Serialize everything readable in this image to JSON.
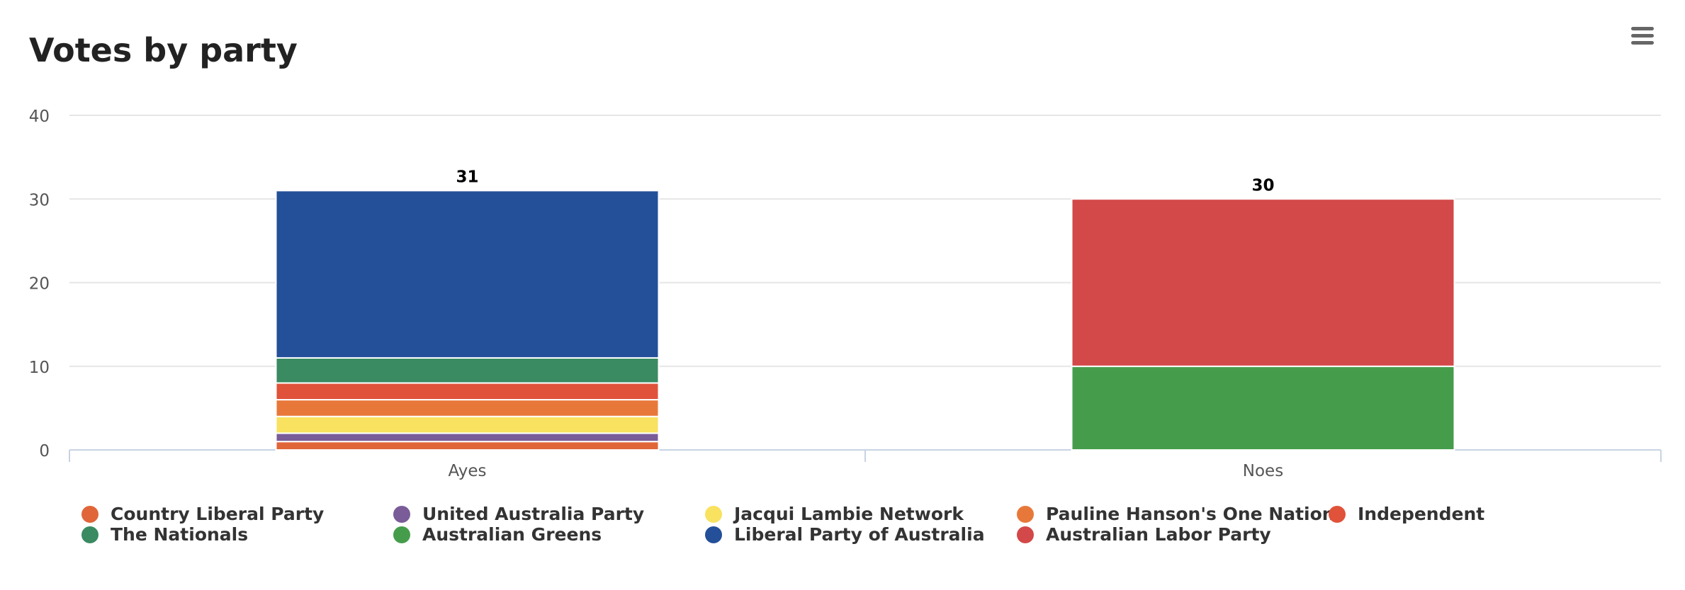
{
  "chart_data": {
    "type": "bar",
    "stacked": true,
    "title": "Votes by party",
    "categories": [
      "Ayes",
      "Noes"
    ],
    "ylim": [
      0,
      40
    ],
    "yticks": [
      0,
      10,
      20,
      30,
      40
    ],
    "grid": true,
    "legend_position": "bottom",
    "stack_totals": [
      31,
      30
    ],
    "series": [
      {
        "name": "Country Liberal Party",
        "color": "#e0663a",
        "values": [
          1,
          0
        ]
      },
      {
        "name": "United Australia Party",
        "color": "#7a5c99",
        "values": [
          1,
          0
        ]
      },
      {
        "name": "Jacqui Lambie Network",
        "color": "#f8e25f",
        "values": [
          2,
          0
        ]
      },
      {
        "name": "Pauline Hanson's One Nation",
        "color": "#e8783a",
        "values": [
          2,
          0
        ]
      },
      {
        "name": "Independent",
        "color": "#e0523a",
        "values": [
          2,
          0
        ]
      },
      {
        "name": "The Nationals",
        "color": "#3a8a62",
        "values": [
          3,
          0
        ]
      },
      {
        "name": "Australian Greens",
        "color": "#459d4b",
        "values": [
          0,
          10
        ]
      },
      {
        "name": "Liberal Party of Australia",
        "color": "#244f99",
        "values": [
          20,
          0
        ]
      },
      {
        "name": "Australian Labor Party",
        "color": "#d34848",
        "values": [
          0,
          20
        ]
      }
    ]
  },
  "menu": {
    "icon": "hamburger-menu-icon"
  }
}
